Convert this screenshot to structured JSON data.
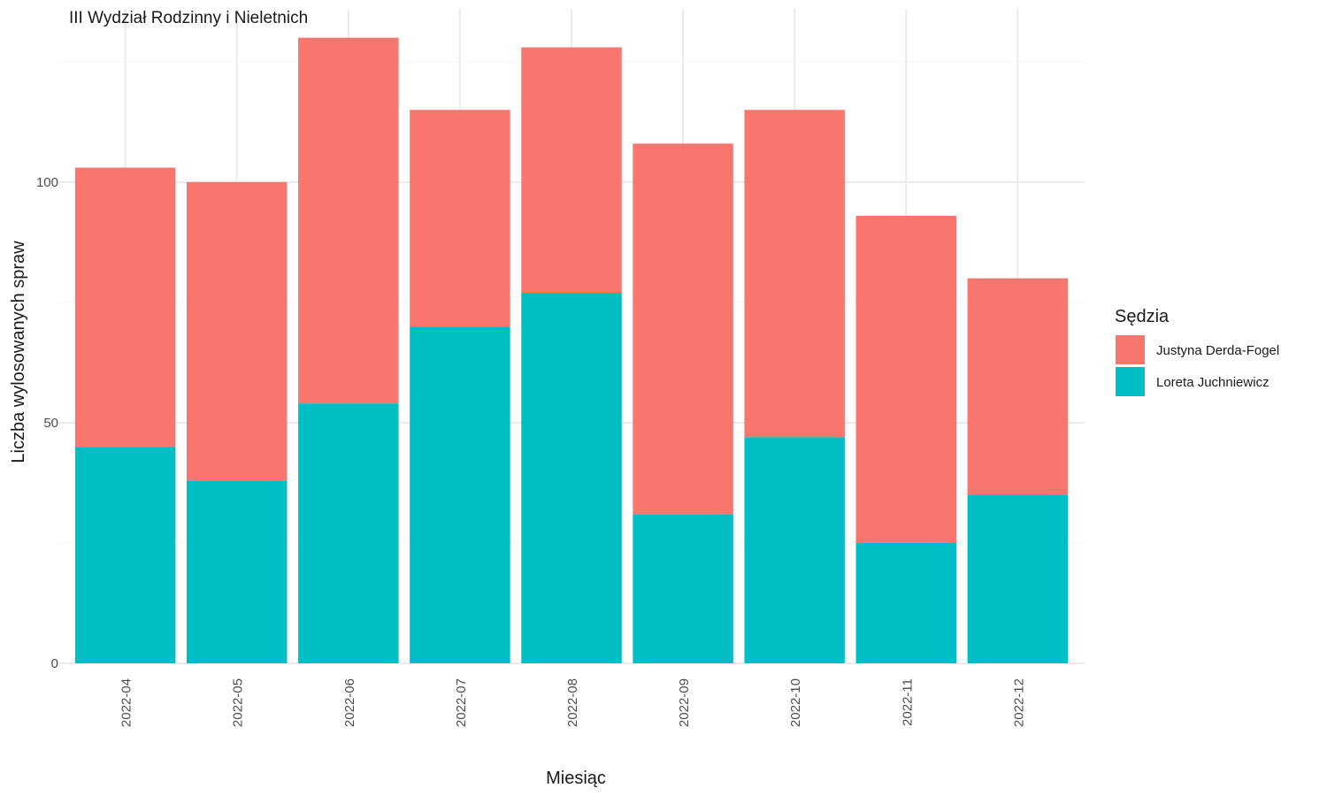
{
  "chart_data": {
    "type": "bar",
    "stacked": true,
    "title": "III Wydział Rodzinny i Nieletnich",
    "xlabel": "Miesiąc",
    "ylabel": "Liczba wylosowanych spraw",
    "categories": [
      "2022-04",
      "2022-05",
      "2022-06",
      "2022-07",
      "2022-08",
      "2022-09",
      "2022-10",
      "2022-11",
      "2022-12"
    ],
    "series": [
      {
        "name": "Loreta Juchniewicz",
        "color": "#00BFC4",
        "values": [
          45,
          38,
          54,
          70,
          77,
          31,
          47,
          25,
          35
        ]
      },
      {
        "name": "Justyna Derda-Fogel",
        "color": "#F8766D",
        "values": [
          58,
          62,
          76,
          45,
          51,
          77,
          68,
          68,
          45
        ]
      }
    ],
    "ylim": [
      0,
      136
    ],
    "yticks": [
      0,
      50,
      100
    ],
    "grid": true,
    "legend": {
      "title": "Sędzia",
      "placement": "right",
      "entries": [
        {
          "label": "Justyna Derda-Fogel",
          "color": "#F8766D"
        },
        {
          "label": "Loreta Juchniewicz",
          "color": "#00BFC4"
        }
      ]
    }
  }
}
